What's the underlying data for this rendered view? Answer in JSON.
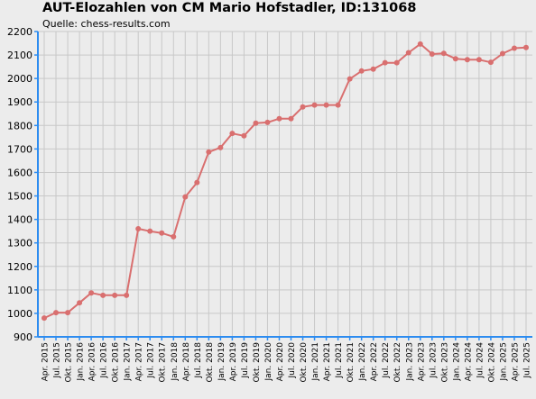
{
  "header": {
    "title": "AUT-Elozahlen von CM Mario Hofstadler, ID:131068",
    "source": "Quelle: chess-results.com"
  },
  "colors": {
    "background": "#ececec",
    "grid": "#c8c8c8",
    "axis": "#2d8cf0",
    "line": "#d96f6f",
    "marker": "#d96f6f"
  },
  "chart_data": {
    "type": "line",
    "title": "AUT-Elozahlen von CM Mario Hofstadler, ID:131068",
    "subtitle": "Quelle: chess-results.com",
    "xlabel": "",
    "ylabel": "",
    "ylim": [
      900,
      2200
    ],
    "yticks": [
      900,
      1000,
      1100,
      1200,
      1300,
      1400,
      1500,
      1600,
      1700,
      1800,
      1900,
      2000,
      2100,
      2200
    ],
    "grid": true,
    "categories": [
      "Apr. 2015",
      "Jul. 2015",
      "Okt. 2015",
      "Jan. 2016",
      "Apr. 2016",
      "Jul. 2016",
      "Okt. 2016",
      "Jan. 2017",
      "Apr. 2017",
      "Jul. 2017",
      "Okt. 2017",
      "Jan. 2018",
      "Apr. 2018",
      "Jul. 2018",
      "Okt. 2018",
      "Jan. 2019",
      "Apr. 2019",
      "Jul. 2019",
      "Okt. 2019",
      "Jan. 2020",
      "Apr. 2020",
      "Jul. 2020",
      "Okt. 2020",
      "Jan. 2021",
      "Apr. 2021",
      "Jul. 2021",
      "Okt. 2021",
      "Jan. 2022",
      "Apr. 2022",
      "Jul. 2022",
      "Okt. 2022",
      "Jan. 2023",
      "Apr. 2023",
      "Jul. 2023",
      "Okt. 2023",
      "Jan. 2024",
      "Apr. 2024",
      "Jul. 2024",
      "Okt. 2024",
      "Jan. 2025",
      "Apr. 2025",
      "Jul. 2025"
    ],
    "series": [
      {
        "name": "",
        "values": [
          980,
          1003,
          1003,
          1045,
          1087,
          1077,
          1077,
          1077,
          1360,
          1350,
          1342,
          1326,
          1496,
          1557,
          1687,
          1706,
          1766,
          1756,
          1810,
          1813,
          1829,
          1829,
          1879,
          1887,
          1887,
          1887,
          1998,
          2032,
          2040,
          2067,
          2067,
          2110,
          2147,
          2104,
          2107,
          2084,
          2080,
          2080,
          2069,
          2106,
          2129,
          2132
        ]
      }
    ]
  }
}
